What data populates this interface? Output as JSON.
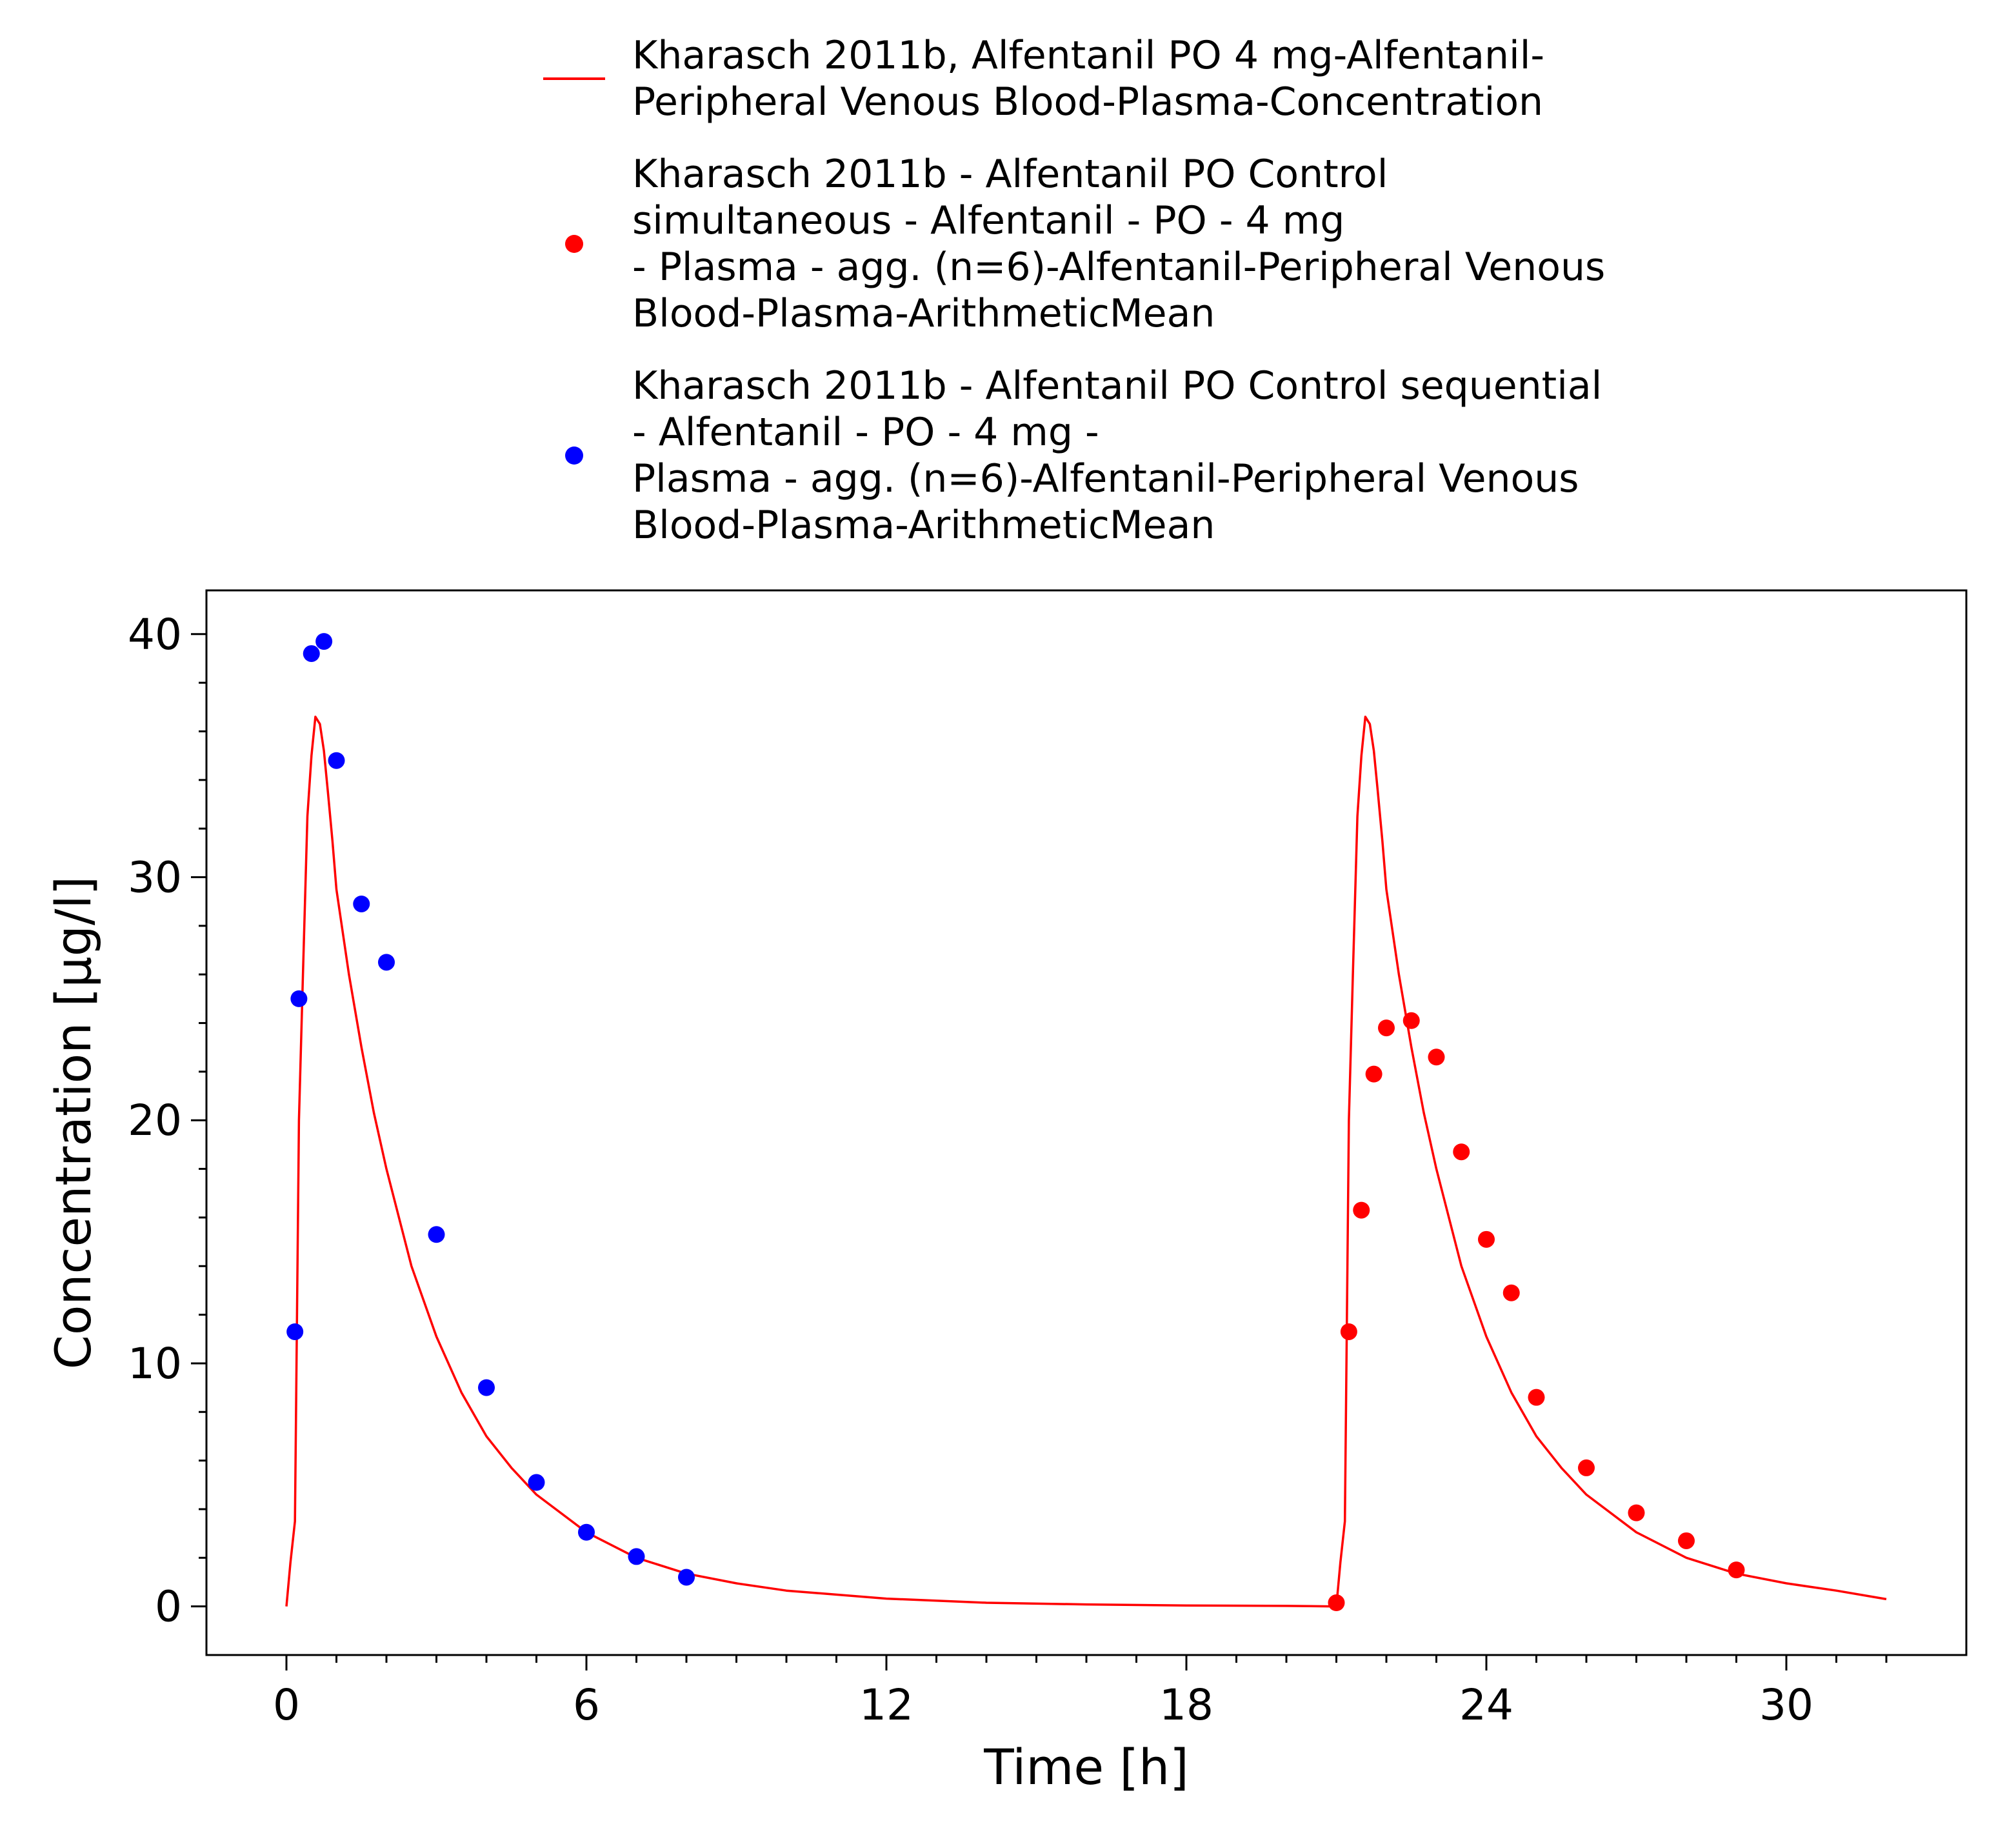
{
  "chart_data": {
    "type": "line",
    "title": "",
    "xlabel": "Time [h]",
    "ylabel": "Concentration [µg/l]",
    "xlim": [
      -1.6,
      33.6
    ],
    "ylim": [
      -2,
      41.8
    ],
    "x_ticks": [
      0,
      6,
      12,
      18,
      24,
      30
    ],
    "y_ticks": [
      0,
      10,
      20,
      30,
      40
    ],
    "x_tick_labels": [
      "0",
      "6",
      "12",
      "18",
      "24",
      "30"
    ],
    "y_tick_labels": [
      "0",
      "10",
      "20",
      "30",
      "40"
    ],
    "grid": false,
    "legend_position": "top (above plot)",
    "series": [
      {
        "name": "Kharasch 2011b, Alfentanil PO 4 mg-Alfentanil-\nPeripheral Venous Blood-Plasma-Concentration",
        "kind": "line",
        "color": "#ff0000",
        "x": [
          0,
          0.08,
          0.17,
          0.25,
          0.33,
          0.42,
          0.5,
          0.58,
          0.67,
          0.75,
          0.83,
          0.92,
          1.0,
          1.25,
          1.5,
          1.75,
          2.0,
          2.5,
          3.0,
          3.5,
          4.0,
          4.5,
          5.0,
          6.0,
          7.0,
          8.0,
          9.0,
          10.0,
          12.0,
          14.0,
          16.0,
          18.0,
          20.0,
          21.0,
          21.08,
          21.17,
          21.25,
          21.33,
          21.42,
          21.5,
          21.58,
          21.67,
          21.75,
          21.83,
          21.92,
          22.0,
          22.25,
          22.5,
          22.75,
          23.0,
          23.5,
          24.0,
          24.5,
          25.0,
          25.5,
          26.0,
          27.0,
          28.0,
          29.0,
          30.0,
          31.0,
          32.0
        ],
        "y": [
          0,
          1.8,
          3.5,
          20.0,
          26.0,
          32.5,
          35.0,
          36.6,
          36.3,
          35.2,
          33.5,
          31.5,
          29.5,
          26.0,
          23.0,
          20.3,
          18.0,
          14.0,
          11.1,
          8.8,
          7.0,
          5.7,
          4.6,
          3.05,
          2.0,
          1.35,
          0.95,
          0.65,
          0.32,
          0.15,
          0.08,
          0.04,
          0.02,
          0,
          1.8,
          3.5,
          20.0,
          26.0,
          32.5,
          35.0,
          36.6,
          36.3,
          35.2,
          33.5,
          31.5,
          29.5,
          26.0,
          23.0,
          20.3,
          18.0,
          14.0,
          11.1,
          8.8,
          7.0,
          5.7,
          4.6,
          3.05,
          2.0,
          1.35,
          0.95,
          0.65,
          0.3
        ]
      },
      {
        "name": "Kharasch 2011b - Alfentanil PO Control\nsimultaneous - Alfentanil - PO - 4 mg\n- Plasma - agg. (n=6)-Alfentanil-Peripheral Venous\nBlood-Plasma-ArithmeticMean",
        "kind": "scatter",
        "color": "#ff0000",
        "x": [
          21.0,
          21.25,
          21.5,
          21.75,
          22.0,
          22.5,
          23.0,
          23.5,
          24.0,
          24.5,
          25.0,
          26.0,
          27.0,
          28.0,
          29.0
        ],
        "y": [
          0.15,
          11.3,
          16.3,
          21.9,
          23.8,
          24.1,
          22.6,
          18.7,
          15.1,
          12.9,
          8.6,
          5.7,
          3.85,
          2.7,
          1.5
        ]
      },
      {
        "name": "Kharasch 2011b - Alfentanil PO Control sequential\n- Alfentanil - PO - 4 mg -\nPlasma - agg. (n=6)-Alfentanil-Peripheral Venous\nBlood-Plasma-ArithmeticMean",
        "kind": "scatter",
        "color": "#0000ff",
        "x": [
          0.17,
          0.25,
          0.5,
          0.75,
          1.0,
          1.5,
          2.0,
          3.0,
          4.0,
          5.0,
          6.0,
          7.0,
          8.0
        ],
        "y": [
          11.3,
          25.0,
          39.2,
          39.7,
          34.8,
          28.9,
          26.5,
          15.3,
          9.0,
          5.1,
          3.05,
          2.05,
          1.2
        ]
      }
    ]
  }
}
